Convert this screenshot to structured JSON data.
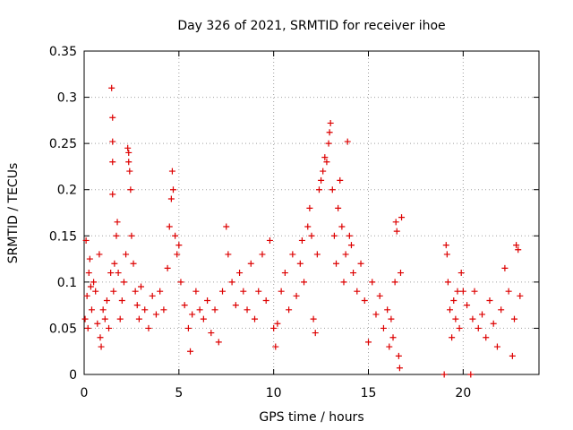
{
  "chart_data": {
    "type": "scatter",
    "title": "Day 326 of 2021, SRMTID for receiver ihoe",
    "xlabel": "GPS time / hours",
    "ylabel": "SRMTID / TECUs",
    "xlim": [
      0,
      24
    ],
    "ylim": [
      0,
      0.35
    ],
    "xticks": [
      0,
      5,
      10,
      15,
      20
    ],
    "xtick_labels": [
      "0",
      "5",
      "10",
      "15",
      "20"
    ],
    "yticks": [
      0,
      0.05,
      0.1,
      0.15,
      0.2,
      0.25,
      0.3,
      0.35
    ],
    "ytick_labels": [
      "0",
      "0.05",
      "0.1",
      "0.15",
      "0.2",
      "0.25",
      "0.3",
      "0.35"
    ],
    "grid": true,
    "marker": "plus",
    "color": "#dd0000",
    "series": [
      {
        "name": "SRMTID",
        "points": [
          [
            0.05,
            0.06
          ],
          [
            0.1,
            0.145
          ],
          [
            0.15,
            0.085
          ],
          [
            0.2,
            0.05
          ],
          [
            0.25,
            0.11
          ],
          [
            0.3,
            0.125
          ],
          [
            0.35,
            0.095
          ],
          [
            0.4,
            0.07
          ],
          [
            0.5,
            0.1
          ],
          [
            0.6,
            0.09
          ],
          [
            0.7,
            0.055
          ],
          [
            0.8,
            0.13
          ],
          [
            0.85,
            0.04
          ],
          [
            0.9,
            0.03
          ],
          [
            1.0,
            0.07
          ],
          [
            1.1,
            0.06
          ],
          [
            1.2,
            0.08
          ],
          [
            1.3,
            0.05
          ],
          [
            1.4,
            0.11
          ],
          [
            1.45,
            0.31
          ],
          [
            1.5,
            0.278
          ],
          [
            1.5,
            0.252
          ],
          [
            1.5,
            0.23
          ],
          [
            1.5,
            0.195
          ],
          [
            1.55,
            0.09
          ],
          [
            1.6,
            0.12
          ],
          [
            1.7,
            0.15
          ],
          [
            1.75,
            0.165
          ],
          [
            1.8,
            0.11
          ],
          [
            1.9,
            0.06
          ],
          [
            2.0,
            0.08
          ],
          [
            2.1,
            0.1
          ],
          [
            2.2,
            0.13
          ],
          [
            2.3,
            0.245
          ],
          [
            2.35,
            0.24
          ],
          [
            2.35,
            0.23
          ],
          [
            2.4,
            0.22
          ],
          [
            2.45,
            0.2
          ],
          [
            2.5,
            0.15
          ],
          [
            2.6,
            0.12
          ],
          [
            2.7,
            0.09
          ],
          [
            2.8,
            0.075
          ],
          [
            2.9,
            0.06
          ],
          [
            3.0,
            0.095
          ],
          [
            3.2,
            0.07
          ],
          [
            3.4,
            0.05
          ],
          [
            3.6,
            0.085
          ],
          [
            3.8,
            0.065
          ],
          [
            4.0,
            0.09
          ],
          [
            4.2,
            0.07
          ],
          [
            4.4,
            0.115
          ],
          [
            4.5,
            0.16
          ],
          [
            4.6,
            0.19
          ],
          [
            4.65,
            0.22
          ],
          [
            4.7,
            0.2
          ],
          [
            4.8,
            0.15
          ],
          [
            4.9,
            0.13
          ],
          [
            5.0,
            0.14
          ],
          [
            5.1,
            0.1
          ],
          [
            5.3,
            0.075
          ],
          [
            5.5,
            0.05
          ],
          [
            5.6,
            0.025
          ],
          [
            5.7,
            0.065
          ],
          [
            5.9,
            0.09
          ],
          [
            6.1,
            0.07
          ],
          [
            6.3,
            0.06
          ],
          [
            6.5,
            0.08
          ],
          [
            6.7,
            0.045
          ],
          [
            6.9,
            0.07
          ],
          [
            7.1,
            0.035
          ],
          [
            7.3,
            0.09
          ],
          [
            7.5,
            0.16
          ],
          [
            7.6,
            0.13
          ],
          [
            7.8,
            0.1
          ],
          [
            8.0,
            0.075
          ],
          [
            8.2,
            0.11
          ],
          [
            8.4,
            0.09
          ],
          [
            8.6,
            0.07
          ],
          [
            8.8,
            0.12
          ],
          [
            9.0,
            0.06
          ],
          [
            9.2,
            0.09
          ],
          [
            9.4,
            0.13
          ],
          [
            9.6,
            0.08
          ],
          [
            9.8,
            0.145
          ],
          [
            10.0,
            0.05
          ],
          [
            10.1,
            0.03
          ],
          [
            10.2,
            0.055
          ],
          [
            10.4,
            0.09
          ],
          [
            10.6,
            0.11
          ],
          [
            10.8,
            0.07
          ],
          [
            11.0,
            0.13
          ],
          [
            11.2,
            0.085
          ],
          [
            11.4,
            0.12
          ],
          [
            11.5,
            0.145
          ],
          [
            11.6,
            0.1
          ],
          [
            11.8,
            0.16
          ],
          [
            11.9,
            0.18
          ],
          [
            12.0,
            0.15
          ],
          [
            12.1,
            0.06
          ],
          [
            12.2,
            0.045
          ],
          [
            12.3,
            0.13
          ],
          [
            12.4,
            0.2
          ],
          [
            12.5,
            0.21
          ],
          [
            12.6,
            0.22
          ],
          [
            12.7,
            0.235
          ],
          [
            12.8,
            0.23
          ],
          [
            12.9,
            0.25
          ],
          [
            12.95,
            0.262
          ],
          [
            13.0,
            0.272
          ],
          [
            13.1,
            0.2
          ],
          [
            13.2,
            0.15
          ],
          [
            13.3,
            0.12
          ],
          [
            13.4,
            0.18
          ],
          [
            13.5,
            0.21
          ],
          [
            13.6,
            0.16
          ],
          [
            13.7,
            0.1
          ],
          [
            13.8,
            0.13
          ],
          [
            13.9,
            0.252
          ],
          [
            14.0,
            0.15
          ],
          [
            14.1,
            0.14
          ],
          [
            14.2,
            0.11
          ],
          [
            14.4,
            0.09
          ],
          [
            14.6,
            0.12
          ],
          [
            14.8,
            0.08
          ],
          [
            15.0,
            0.035
          ],
          [
            15.2,
            0.1
          ],
          [
            15.4,
            0.065
          ],
          [
            15.6,
            0.085
          ],
          [
            15.8,
            0.05
          ],
          [
            16.0,
            0.07
          ],
          [
            16.1,
            0.03
          ],
          [
            16.2,
            0.06
          ],
          [
            16.3,
            0.04
          ],
          [
            16.4,
            0.1
          ],
          [
            16.45,
            0.165
          ],
          [
            16.5,
            0.155
          ],
          [
            16.6,
            0.02
          ],
          [
            16.65,
            0.007
          ],
          [
            16.7,
            0.11
          ],
          [
            16.75,
            0.17
          ],
          [
            19.0,
            0.0
          ],
          [
            19.1,
            0.14
          ],
          [
            19.15,
            0.13
          ],
          [
            19.2,
            0.1
          ],
          [
            19.3,
            0.07
          ],
          [
            19.4,
            0.04
          ],
          [
            19.5,
            0.08
          ],
          [
            19.6,
            0.06
          ],
          [
            19.7,
            0.09
          ],
          [
            19.8,
            0.05
          ],
          [
            19.9,
            0.11
          ],
          [
            20.0,
            0.09
          ],
          [
            20.2,
            0.075
          ],
          [
            20.4,
            0.0
          ],
          [
            20.5,
            0.06
          ],
          [
            20.6,
            0.09
          ],
          [
            20.8,
            0.05
          ],
          [
            21.0,
            0.065
          ],
          [
            21.2,
            0.04
          ],
          [
            21.4,
            0.08
          ],
          [
            21.6,
            0.055
          ],
          [
            21.8,
            0.03
          ],
          [
            22.0,
            0.07
          ],
          [
            22.2,
            0.115
          ],
          [
            22.4,
            0.09
          ],
          [
            22.6,
            0.02
          ],
          [
            22.7,
            0.06
          ],
          [
            22.8,
            0.14
          ],
          [
            22.9,
            0.135
          ],
          [
            23.0,
            0.085
          ]
        ]
      }
    ]
  }
}
